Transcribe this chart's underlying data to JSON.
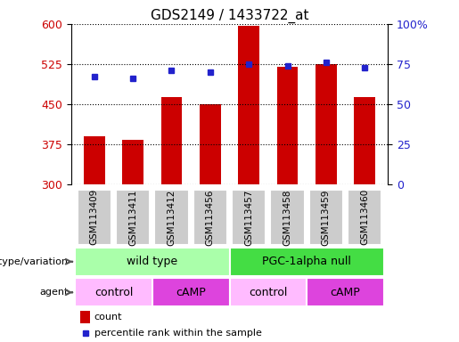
{
  "title": "GDS2149 / 1433722_at",
  "samples": [
    "GSM113409",
    "GSM113411",
    "GSM113412",
    "GSM113456",
    "GSM113457",
    "GSM113458",
    "GSM113459",
    "GSM113460"
  ],
  "counts": [
    390,
    383,
    463,
    450,
    597,
    520,
    525,
    463
  ],
  "percentile_ranks": [
    67,
    66,
    71,
    70,
    75,
    74,
    76,
    73
  ],
  "ymin": 300,
  "ymax": 600,
  "yticks": [
    300,
    375,
    450,
    525,
    600
  ],
  "right_ytick_vals": [
    0,
    25,
    50,
    75,
    100
  ],
  "right_ytick_labels": [
    "0",
    "25",
    "50",
    "75",
    "100%"
  ],
  "bar_color": "#cc0000",
  "dot_color": "#2222cc",
  "label_color_left": "#cc0000",
  "label_color_right": "#2222cc",
  "genotype_groups": [
    {
      "label": "wild type",
      "start": 0,
      "end": 4,
      "color": "#aaffaa"
    },
    {
      "label": "PGC-1alpha null",
      "start": 4,
      "end": 8,
      "color": "#44dd44"
    }
  ],
  "agent_groups": [
    {
      "label": "control",
      "start": 0,
      "end": 2,
      "color": "#ffbbff"
    },
    {
      "label": "cAMP",
      "start": 2,
      "end": 4,
      "color": "#dd44dd"
    },
    {
      "label": "control",
      "start": 4,
      "end": 6,
      "color": "#ffbbff"
    },
    {
      "label": "cAMP",
      "start": 6,
      "end": 8,
      "color": "#dd44dd"
    }
  ],
  "legend_count_label": "count",
  "legend_pct_label": "percentile rank within the sample",
  "tick_label_bg": "#cccccc",
  "genotype_label": "genotype/variation",
  "agent_label": "agent"
}
